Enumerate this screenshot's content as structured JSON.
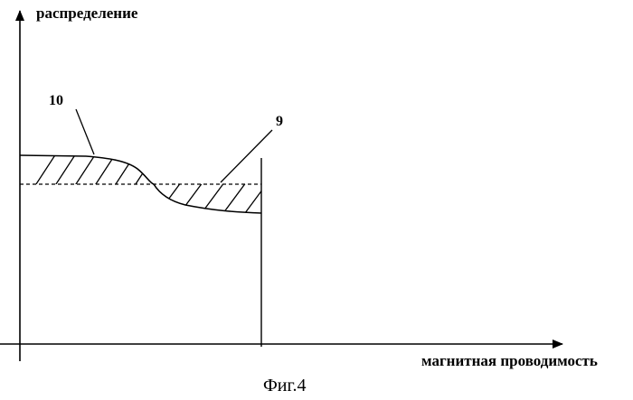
{
  "figure": {
    "y_axis_label": "распределение",
    "x_axis_label": "магнитная проводимость",
    "curve_10_label": "10",
    "curve_9_label": "9",
    "caption": "Фиг.4"
  },
  "colors": {
    "ink": "#000000",
    "background": "#ffffff"
  }
}
